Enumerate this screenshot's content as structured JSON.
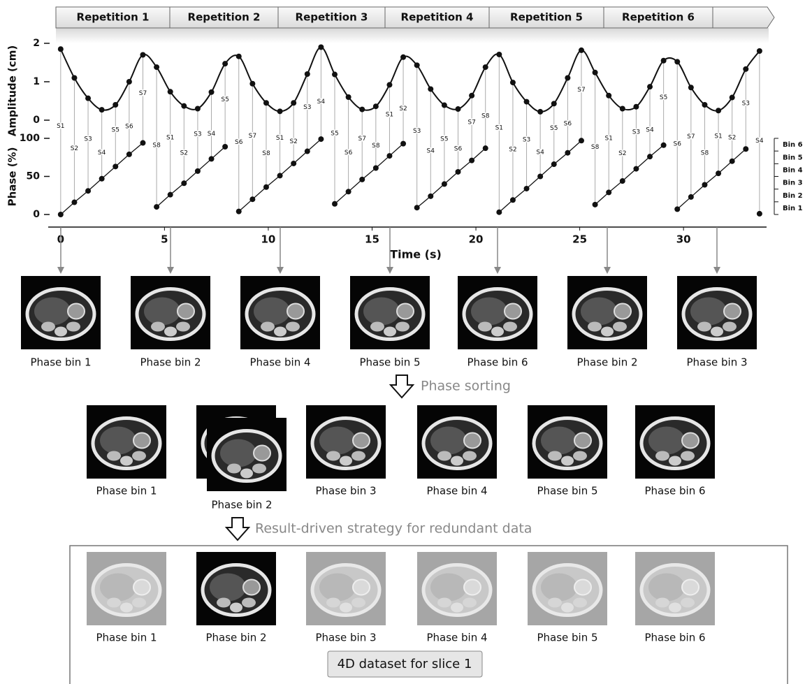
{
  "chart_data": {
    "type": "line",
    "repetitions": [
      "Repetition 1",
      "Repetition 2",
      "Repetition 3",
      "Repetition 4",
      "Repetition 5",
      "Repetition 6"
    ],
    "xlabel": "Time (s)",
    "ylabel": "Amplitude (cm)",
    "y2label": "Phase (%)",
    "xlim": [
      -0.6,
      34
    ],
    "xticks": [
      0,
      5,
      10,
      15,
      20,
      25,
      30
    ],
    "ylim": [
      0,
      2
    ],
    "yticks": [
      0,
      1,
      2
    ],
    "y2lim": [
      0,
      100
    ],
    "y2ticks": [
      0,
      50,
      100
    ],
    "x": [
      0,
      0.66,
      1.32,
      1.98,
      2.64,
      3.3,
      3.96,
      4.62,
      5.28,
      5.94,
      6.6,
      7.26,
      7.92,
      8.58,
      9.24,
      9.9,
      10.56,
      11.22,
      11.88,
      12.54,
      13.2,
      13.86,
      14.52,
      15.18,
      15.84,
      16.5,
      17.16,
      17.82,
      18.48,
      19.14,
      19.8,
      20.46,
      21.12,
      21.78,
      22.44,
      23.1,
      23.76,
      24.42,
      25.08,
      25.74,
      26.4,
      27.06,
      27.72,
      28.38,
      29.04,
      29.7,
      30.36,
      31.02,
      31.68,
      32.34,
      33.0,
      33.66
    ],
    "series": [
      {
        "color": "#111111",
        "values": [
          1.85,
          1.1,
          0.57,
          0.27,
          0.4,
          1.0,
          1.7,
          1.38,
          0.74,
          0.37,
          0.3,
          0.73,
          1.47,
          1.66,
          0.95,
          0.45,
          0.23,
          0.45,
          1.2,
          1.9,
          1.19,
          0.6,
          0.28,
          0.36,
          0.92,
          1.64,
          1.43,
          0.81,
          0.39,
          0.29,
          0.64,
          1.38,
          1.71,
          0.98,
          0.48,
          0.22,
          0.43,
          1.1,
          1.82,
          1.24,
          0.64,
          0.3,
          0.35,
          0.87,
          1.55,
          1.52,
          0.85,
          0.4,
          0.25,
          0.59,
          1.33,
          1.8
        ]
      },
      {
        "color": "#111111",
        "axis": "y2",
        "values": [
          0,
          16,
          31,
          47,
          63,
          79,
          94,
          10,
          26,
          41,
          57,
          73,
          89,
          4,
          20,
          36,
          51,
          67,
          83,
          99,
          14,
          30,
          46,
          61,
          77,
          93,
          9,
          24,
          40,
          56,
          71,
          87,
          3,
          19,
          34,
          50,
          66,
          81,
          97,
          13,
          29,
          44,
          60,
          76,
          91,
          7,
          23,
          39,
          54,
          70,
          86,
          1
        ]
      }
    ],
    "sample_labels": [
      "S1",
      "S2",
      "S3",
      "S4",
      "S5",
      "S6",
      "S7",
      "S8",
      "S1",
      "S2",
      "S3",
      "S4",
      "S5",
      "S6",
      "S7",
      "S8",
      "S1",
      "S2",
      "S3",
      "S4",
      "S5",
      "S6",
      "S7",
      "S8",
      "S1",
      "S2",
      "S3",
      "S4",
      "S5",
      "S6",
      "S7",
      "S8",
      "S1",
      "S2",
      "S3",
      "S4",
      "S5",
      "S6",
      "S7",
      "S8",
      "S1",
      "S2",
      "S3",
      "S4",
      "S5",
      "S6",
      "S7",
      "S8",
      "S1",
      "S2",
      "S3",
      "S4"
    ],
    "bins": [
      "Bin 1",
      "Bin 2",
      "Bin 3",
      "Bin 4",
      "Bin 5",
      "Bin 6"
    ]
  },
  "acquired": {
    "labels": [
      "Phase bin 1",
      "Phase bin 2",
      "Phase bin 4",
      "Phase bin 5",
      "Phase bin 6",
      "Phase bin 2",
      "Phase bin 3"
    ]
  },
  "sorting": {
    "label": "Phase sorting"
  },
  "sorted": {
    "labels": [
      "Phase bin 1",
      "Phase bin 2",
      "Phase bin 3",
      "Phase bin 4",
      "Phase bin 5",
      "Phase bin 6"
    ]
  },
  "strategy": {
    "label": "Result-driven strategy for redundant data"
  },
  "result": {
    "labels": [
      "Phase bin 1",
      "Phase bin 2",
      "Phase bin 3",
      "Phase bin 4",
      "Phase bin 5",
      "Phase bin 6"
    ],
    "button": "4D dataset for slice 1"
  }
}
